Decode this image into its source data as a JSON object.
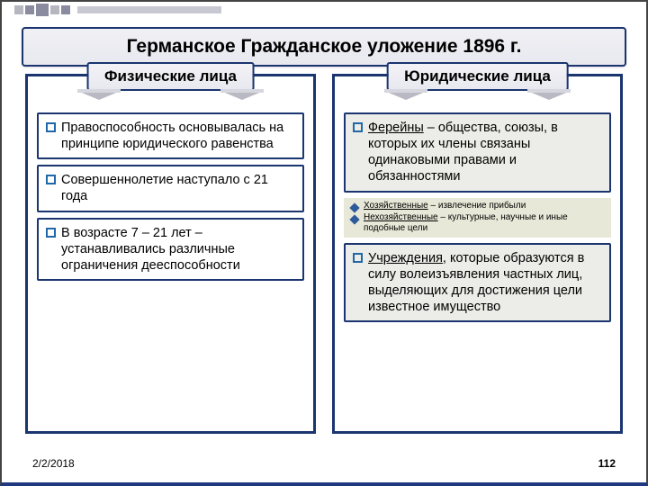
{
  "title": "Германское Гражданское уложение 1896 г.",
  "left": {
    "header": "Физические лица",
    "items": [
      "Правоспособность основывалась на принципе юридического равенства",
      "Совершеннолетие наступало с 21 года",
      "В возрасте 7 – 21 лет – устанавливались различные ограничения дееспособности"
    ]
  },
  "right": {
    "header": "Юридические лица",
    "item1_lead": "Ферейны",
    "item1_rest": " – общества, союзы, в которых их члены связаны одинаковыми правами и обязанностями",
    "sub": [
      {
        "lead": "Хозяйственные",
        "rest": " – извлечение прибыли"
      },
      {
        "lead": "Нехозяйственные",
        "rest": " – культурные, научные и иные подобные цели"
      }
    ],
    "item2_lead": "Учреждения",
    "item2_rest": ", которые образуются в силу волеизъявления частных лиц, выделяющих для достижения цели известное имущество"
  },
  "footer": {
    "date": "2/2/2018",
    "page": "112"
  },
  "colors": {
    "border": "#1a3570",
    "shade": "#ecece8"
  }
}
